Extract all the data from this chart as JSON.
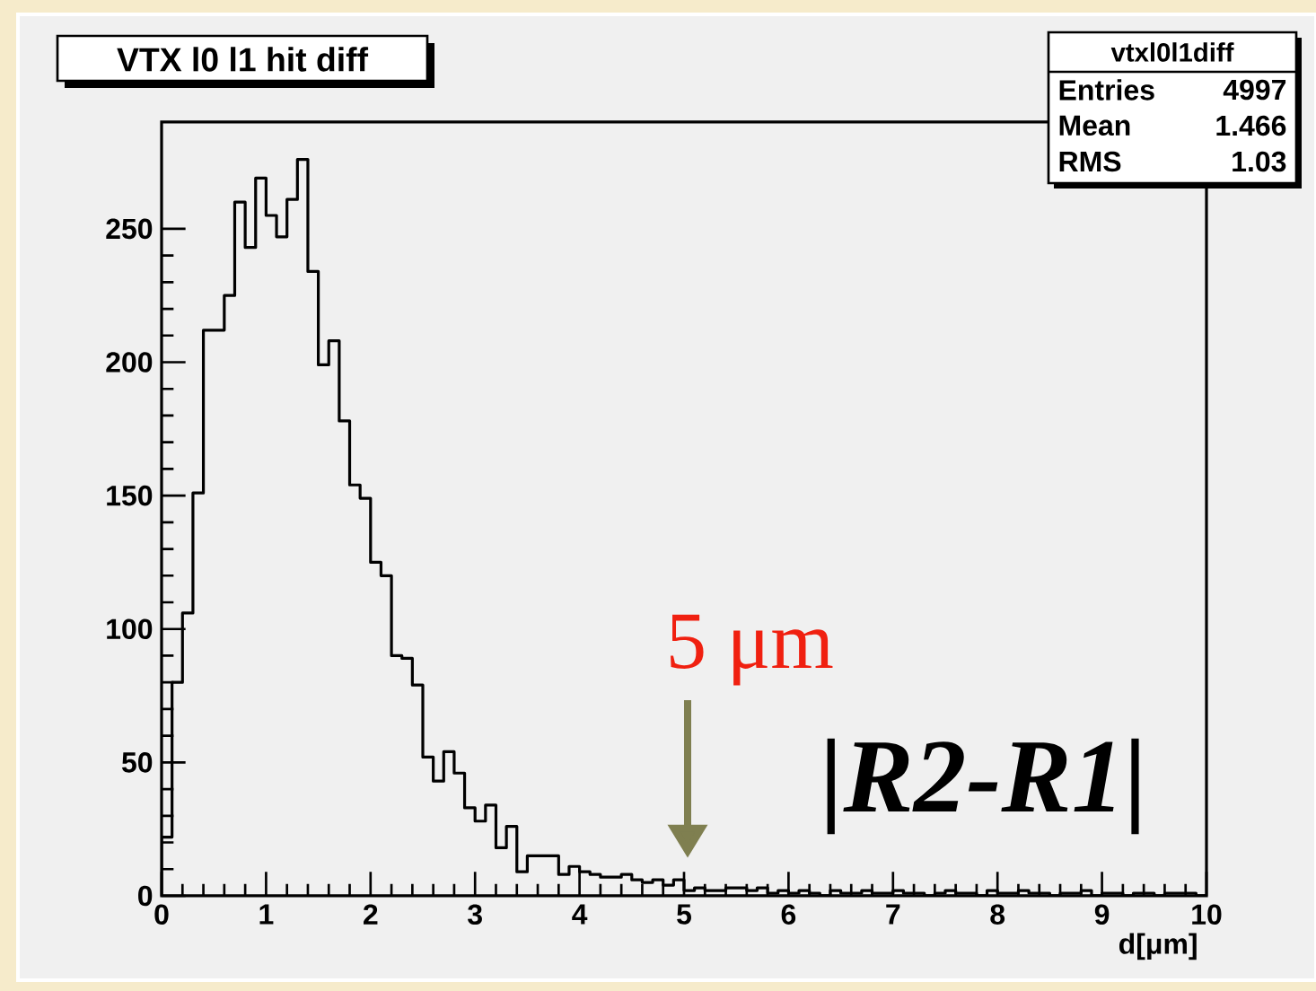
{
  "chart_data": {
    "type": "histogram",
    "title": "VTX l0 l1 hit diff",
    "xlabel": "d[μm]",
    "bins": [
      0,
      0.1,
      0.2,
      0.3,
      0.4,
      0.5,
      0.6,
      0.7,
      0.8,
      0.9,
      1,
      1.1,
      1.2,
      1.3,
      1.4,
      1.5,
      1.6,
      1.7,
      1.8,
      1.9,
      2,
      2.1,
      2.2,
      2.3,
      2.4,
      2.5,
      2.6,
      2.7,
      2.8,
      2.9,
      3,
      3.1,
      3.2,
      3.3,
      3.4,
      3.5,
      3.6,
      3.7,
      3.8,
      3.9,
      4,
      4.1,
      4.2,
      4.3,
      4.4,
      4.5,
      4.6,
      4.7,
      4.8,
      4.9,
      5,
      5.1,
      5.2,
      5.3,
      5.4,
      5.5,
      5.6,
      5.7,
      5.8,
      5.9,
      6,
      6.1,
      6.2,
      6.3,
      6.4,
      6.5,
      6.6,
      6.7,
      6.8,
      6.9,
      7,
      7.1,
      7.2,
      7.3,
      7.4,
      7.5,
      7.6,
      7.7,
      7.8,
      7.9,
      8,
      8.1,
      8.2,
      8.3,
      8.4,
      8.5,
      8.6,
      8.7,
      8.8,
      8.9,
      9,
      9.1,
      9.2,
      9.3,
      9.4,
      9.5,
      9.6,
      9.7,
      9.8,
      9.9,
      10
    ],
    "values": [
      22,
      80,
      106,
      151,
      212,
      212,
      225,
      260,
      243,
      269,
      255,
      247,
      261,
      276,
      234,
      199,
      208,
      178,
      154,
      149,
      125,
      120,
      90,
      89,
      79,
      52,
      43,
      54,
      46,
      33,
      28,
      34,
      18,
      26,
      9,
      15,
      15,
      15,
      8,
      11,
      9,
      8,
      7,
      7,
      8,
      6,
      5,
      6,
      4,
      6,
      2,
      3,
      2,
      2,
      3,
      3,
      2,
      3,
      1,
      2,
      1,
      2,
      1,
      0,
      2,
      1,
      1,
      2,
      1,
      1,
      2,
      1,
      1,
      0,
      1,
      2,
      1,
      1,
      0,
      2,
      1,
      1,
      2,
      1,
      1,
      0,
      1,
      1,
      2,
      0,
      1,
      1,
      0,
      1,
      1,
      0,
      1,
      1,
      1,
      0
    ],
    "color": "#000000",
    "xlim": [
      0,
      10
    ],
    "ylim": [
      0,
      290
    ],
    "xticks": [
      0,
      1,
      2,
      3,
      4,
      5,
      6,
      7,
      8,
      9,
      10
    ],
    "yticks": [
      0,
      50,
      100,
      150,
      200,
      250
    ],
    "grid": false,
    "annotations": [
      "5 μm",
      "|R2-R1|",
      "vtxl0l1diff",
      "Entries",
      "4997",
      "Mean",
      "1.466",
      "RMS",
      "1.03"
    ]
  }
}
